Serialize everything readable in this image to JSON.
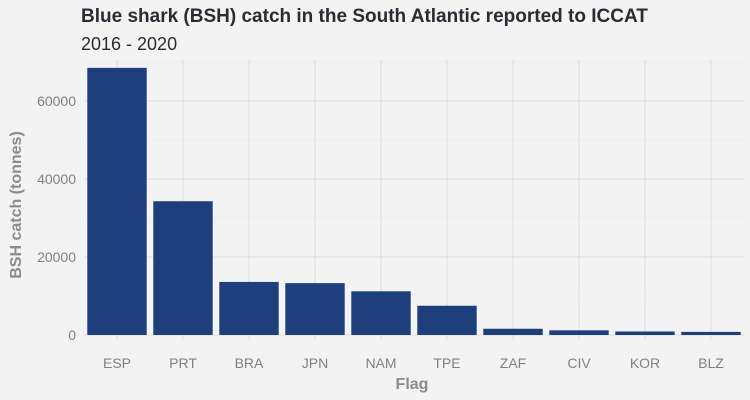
{
  "chart_data": {
    "type": "bar",
    "title": "Blue shark (BSH) catch in the South Atlantic reported to ICCAT",
    "subtitle": "2016 - 2020",
    "xlabel": "Flag",
    "ylabel": "BSH catch (tonnes)",
    "categories": [
      "ESP",
      "PRT",
      "BRA",
      "JPN",
      "NAM",
      "TPE",
      "ZAF",
      "CIV",
      "KOR",
      "BLZ"
    ],
    "values": [
      68500,
      34300,
      13600,
      13300,
      11200,
      7500,
      1600,
      1200,
      900,
      800
    ],
    "ylim": [
      0,
      70000
    ],
    "yticks": [
      0,
      20000,
      40000,
      60000
    ],
    "ytick_labels": [
      "0",
      "20000",
      "40000",
      "60000"
    ],
    "grid": true,
    "bar_color": "#1f3f7c"
  }
}
